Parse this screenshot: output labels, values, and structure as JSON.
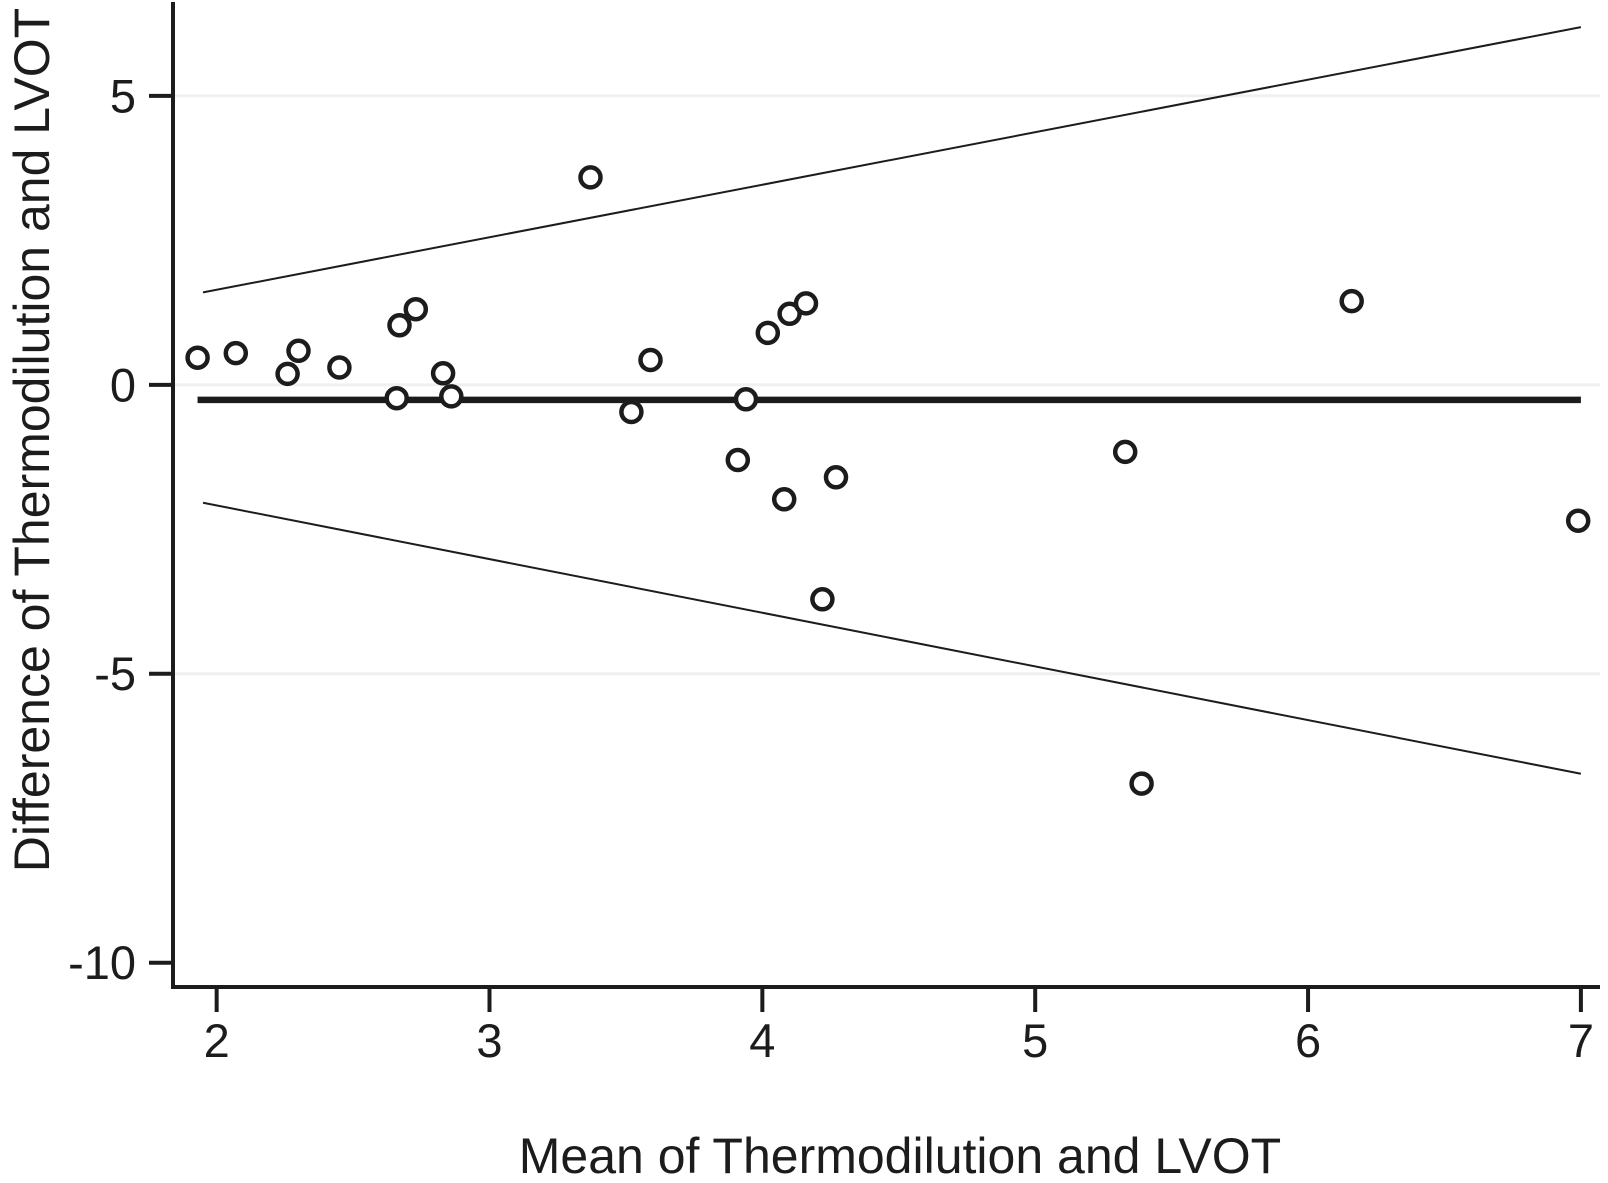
{
  "chart_data": {
    "type": "scatter",
    "title": "",
    "xlabel": "Mean of Thermodilution and LVOT",
    "ylabel": "Difference of Thermodilution and LVOT",
    "x_ticks": [
      2,
      3,
      4,
      5,
      6,
      7
    ],
    "y_ticks": [
      5,
      0,
      -5,
      -10
    ],
    "xlim": [
      1.84,
      7.07
    ],
    "ylim": [
      -10.42,
      6.66
    ],
    "grid_y_values": [
      5,
      0,
      -5
    ],
    "grid_on": true,
    "legend": "none",
    "marker": "open-circle",
    "points": [
      [
        1.93,
        0.47
      ],
      [
        2.07,
        0.55
      ],
      [
        2.26,
        0.19
      ],
      [
        2.3,
        0.59
      ],
      [
        2.45,
        0.3
      ],
      [
        2.66,
        -0.23
      ],
      [
        2.67,
        1.03
      ],
      [
        2.73,
        1.31
      ],
      [
        2.83,
        0.2
      ],
      [
        2.86,
        -0.2
      ],
      [
        3.37,
        3.59
      ],
      [
        3.52,
        -0.47
      ],
      [
        3.59,
        0.43
      ],
      [
        3.91,
        -1.3
      ],
      [
        3.94,
        -0.25
      ],
      [
        4.02,
        0.9
      ],
      [
        4.08,
        -1.98
      ],
      [
        4.1,
        1.23
      ],
      [
        4.16,
        1.41
      ],
      [
        4.22,
        -3.71
      ],
      [
        4.27,
        -1.6
      ],
      [
        5.33,
        -1.16
      ],
      [
        5.39,
        -6.9
      ],
      [
        6.16,
        1.45
      ],
      [
        6.99,
        -2.35
      ]
    ],
    "mean_line": {
      "y": -0.26,
      "x1": 1.93,
      "x2": 7.0
    },
    "upper_limit_line": {
      "x1": 1.95,
      "y1": 1.6,
      "x2": 7.0,
      "y2": 6.19
    },
    "lower_limit_line": {
      "x1": 1.95,
      "y1": -2.04,
      "x2": 7.0,
      "y2": -6.73
    },
    "colors": {
      "axis": "#1c1c1c",
      "grid": "#f0f0f0",
      "line": "#1c1c1c",
      "point_stroke": "#1c1c1c",
      "point_fill": "#ffffff"
    }
  }
}
